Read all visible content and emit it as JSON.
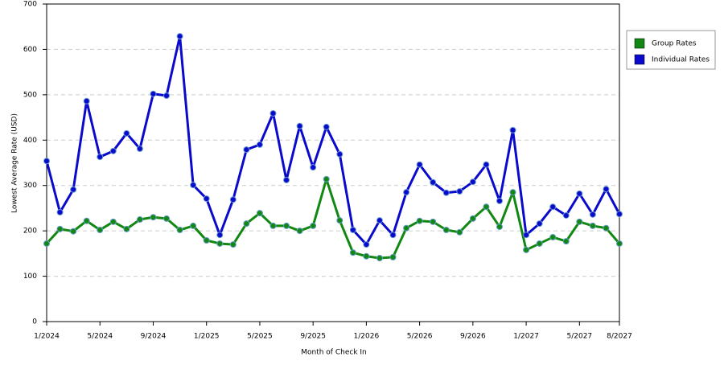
{
  "chart_data": {
    "type": "line",
    "x_label": "Month of Check In",
    "y_label": "Lowest Average Rate (USD)",
    "categories": [
      "1/2024",
      null,
      null,
      null,
      "5/2024",
      null,
      null,
      null,
      "9/2024",
      null,
      null,
      null,
      "1/2025",
      null,
      null,
      null,
      "5/2025",
      null,
      null,
      null,
      "9/2025",
      null,
      null,
      null,
      "1/2026",
      null,
      null,
      null,
      "5/2026",
      null,
      null,
      null,
      "9/2026",
      null,
      null,
      null,
      "1/2027",
      null,
      null,
      null,
      "5/2027",
      null,
      null,
      "8/2027"
    ],
    "series": [
      {
        "name": "Group Rates",
        "color": "#118811",
        "values": [
          172,
          204,
          199,
          222,
          202,
          220,
          204,
          225,
          230,
          227,
          202,
          211,
          179,
          172,
          170,
          216,
          239,
          211,
          211,
          200,
          211,
          314,
          223,
          152,
          144,
          140,
          142,
          206,
          222,
          220,
          202,
          197,
          227,
          253,
          209,
          285,
          158,
          172,
          186,
          177,
          220,
          211,
          206,
          172
        ]
      },
      {
        "name": "Individual Rates",
        "color": "#0a0acc",
        "values": [
          354,
          241,
          291,
          486,
          363,
          376,
          415,
          381,
          502,
          498,
          629,
          301,
          271,
          191,
          269,
          379,
          390,
          459,
          312,
          431,
          340,
          429,
          369,
          202,
          170,
          223,
          191,
          285,
          346,
          307,
          284,
          287,
          308,
          346,
          266,
          422,
          191,
          216,
          253,
          234,
          282,
          236,
          292,
          237
        ]
      }
    ],
    "ylim": [
      0,
      700
    ],
    "yticks": [
      0,
      100,
      200,
      300,
      400,
      500,
      600,
      700
    ],
    "grid": true,
    "legend": "right"
  }
}
